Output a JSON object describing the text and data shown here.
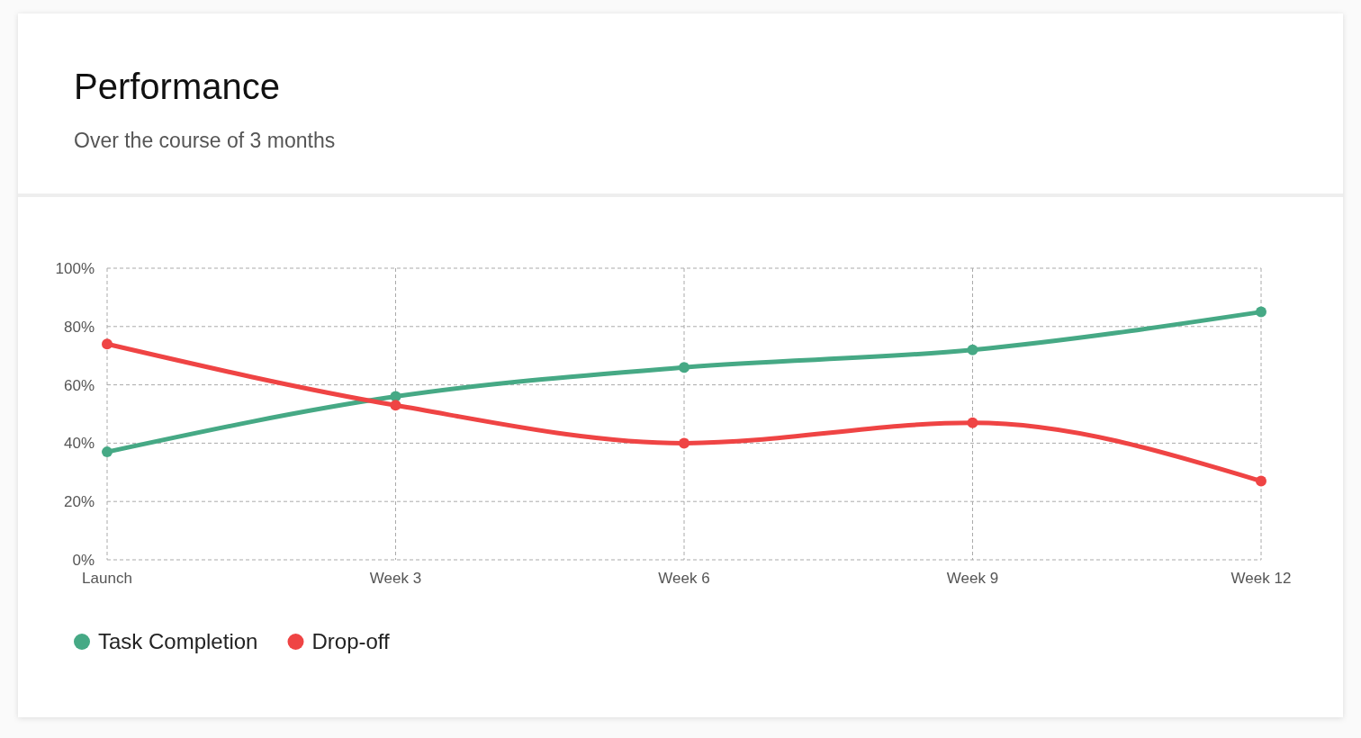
{
  "chart_data": {
    "type": "line",
    "title": "Performance",
    "subtitle": "Over the course of 3 months",
    "categories": [
      "Launch",
      "Week 3",
      "Week 6",
      "Week 9",
      "Week 12"
    ],
    "series": [
      {
        "name": "Task Completion",
        "color": "#46a985",
        "values": [
          37,
          56,
          66,
          72,
          85
        ]
      },
      {
        "name": "Drop-off",
        "color": "#ef4444",
        "values": [
          74,
          53,
          40,
          47,
          27
        ]
      }
    ],
    "ylim": [
      0,
      100
    ],
    "yticks": [
      {
        "value": 0,
        "label": "0%"
      },
      {
        "value": 20,
        "label": "20%"
      },
      {
        "value": 40,
        "label": "40%"
      },
      {
        "value": 60,
        "label": "60%"
      },
      {
        "value": 80,
        "label": "80%"
      },
      {
        "value": 100,
        "label": "100%"
      }
    ],
    "grid": true,
    "legend": "bottom left",
    "marker": "circle",
    "line_style": "solid"
  }
}
